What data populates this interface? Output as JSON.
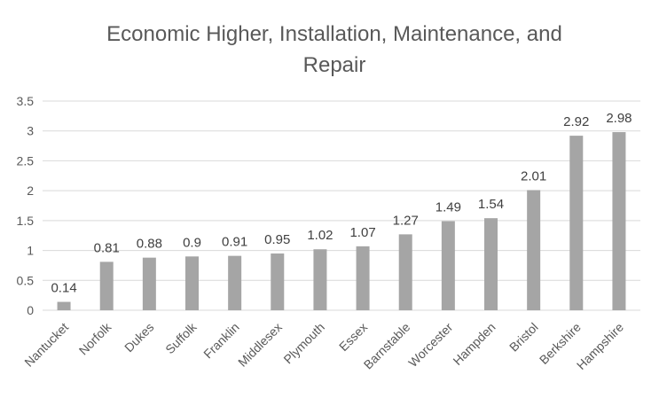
{
  "chart_data": {
    "type": "bar",
    "title_lines": [
      "Economic Higher, Installation, Maintenance, and",
      "Repair"
    ],
    "categories": [
      "Nantucket",
      "Norfolk",
      "Dukes",
      "Suffolk",
      "Franklin",
      "Middlesex",
      "Plymouth",
      "Essex",
      "Barnstable",
      "Worcester",
      "Hampden",
      "Bristol",
      "Berkshire",
      "Hampshire"
    ],
    "values": [
      0.14,
      0.81,
      0.88,
      0.9,
      0.91,
      0.95,
      1.02,
      1.07,
      1.27,
      1.49,
      1.54,
      2.01,
      2.92,
      2.98
    ],
    "value_labels": [
      "0.14",
      "0.81",
      "0.88",
      "0.9",
      "0.91",
      "0.95",
      "1.02",
      "1.07",
      "1.27",
      "1.49",
      "1.54",
      "2.01",
      "2.92",
      "2.98"
    ],
    "y_ticks": [
      0,
      0.5,
      1,
      1.5,
      2,
      2.5,
      3,
      3.5
    ],
    "y_tick_labels": [
      "0",
      "0.5",
      "1",
      "1.5",
      "2",
      "2.5",
      "3",
      "3.5"
    ],
    "ylim": [
      0,
      3.5
    ],
    "grid": true,
    "legend": "none",
    "bar_color": "#a5a5a5"
  }
}
